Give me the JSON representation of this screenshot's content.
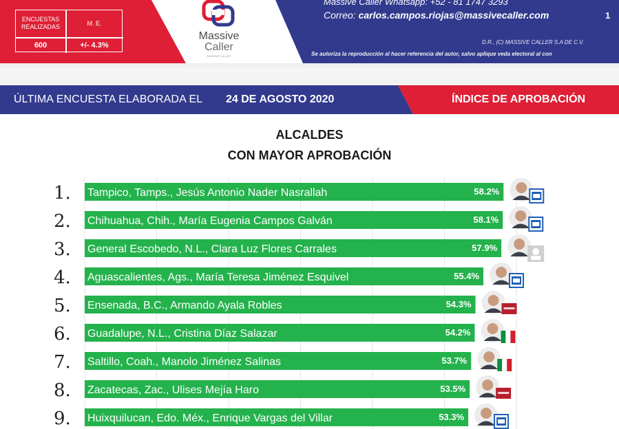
{
  "header": {
    "stats": {
      "col1_header": "ENCUESTAS REALIZADAS",
      "col2_header": "M. E.",
      "col1_value": "600",
      "col2_value": "+/- 4.3%"
    },
    "logo": {
      "line1": "Massive",
      "line2": "Caller",
      "line3": "MASSIVE CALLER"
    },
    "contact_line1": "Massive Caller Whatsapp: +52 - 81 1747 3293",
    "contact_label": "Correo: ",
    "contact_email": "carlos.campos.riojas@massivecaller.com",
    "page_number": "1",
    "legal_line1": "D.R., (C) MASSIVE CALLER S.A DE C.V.",
    "legal_line2": "Se autoriza la reproducción al hacer referencia del autor, salvo aplique veda electoral al con"
  },
  "titlebar": {
    "left_text": "ÚLTIMA ENCUESTA ELABORADA EL",
    "date": "24 DE AGOSTO 2020",
    "right_text": "ÍNDICE DE APROBACIÓN"
  },
  "colors": {
    "red": "#de1f35",
    "navy": "#323a8e",
    "bar_green": "#24b24c",
    "pan_blue": "#1f5fb4",
    "morena_red": "#b71f2c",
    "pri_green": "#0a8f3a"
  },
  "chart_data": {
    "type": "bar",
    "orientation": "horizontal",
    "title": "ALCALDES",
    "subtitle": "CON MAYOR APROBACIÓN",
    "xlim": [
      0,
      62
    ],
    "grid": true,
    "categories": [
      "Tampico, Tamps., Jesús Antonio Nader Nasrallah",
      "Chihuahua, Chih., María Eugenia Campos Galván",
      "General Escobedo, N.L., Clara Luz Flores Carrales",
      "Aguascalientes, Ags., María Teresa Jiménez Esquivel",
      "Ensenada, B.C., Armando Ayala Robles",
      "Guadalupe, N.L., Cristina Díaz Salazar",
      "Saltillo, Coah., Manolo Jiménez Salinas",
      "Zacatecas, Zac., Ulises Mejía Haro",
      "Huixquilucan, Edo. Méx., Enrique Vargas del Villar"
    ],
    "ranks": [
      "1.",
      "2.",
      "3.",
      "4.",
      "5.",
      "6.",
      "7.",
      "8.",
      "9."
    ],
    "values": [
      58.2,
      58.1,
      57.9,
      55.4,
      54.3,
      54.2,
      53.7,
      53.5,
      53.3
    ],
    "value_labels": [
      "58.2%",
      "58.1%",
      "57.9%",
      "55.4%",
      "54.3%",
      "54.2%",
      "53.7%",
      "53.5%",
      "53.3%"
    ],
    "party_icons": [
      "pan-logo-icon",
      "pan-logo-icon",
      "independent-icon",
      "pan-logo-icon",
      "morena-logo-icon",
      "pri-logo-icon",
      "pri-logo-icon",
      "morena-logo-icon",
      "pan-logo-icon"
    ],
    "avatar_icons": [
      "mayor-photo-icon",
      "mayor-photo-icon",
      "mayor-photo-icon",
      "mayor-photo-icon",
      "mayor-photo-icon",
      "mayor-photo-icon",
      "mayor-photo-icon",
      "mayor-photo-icon",
      "mayor-photo-icon"
    ]
  }
}
